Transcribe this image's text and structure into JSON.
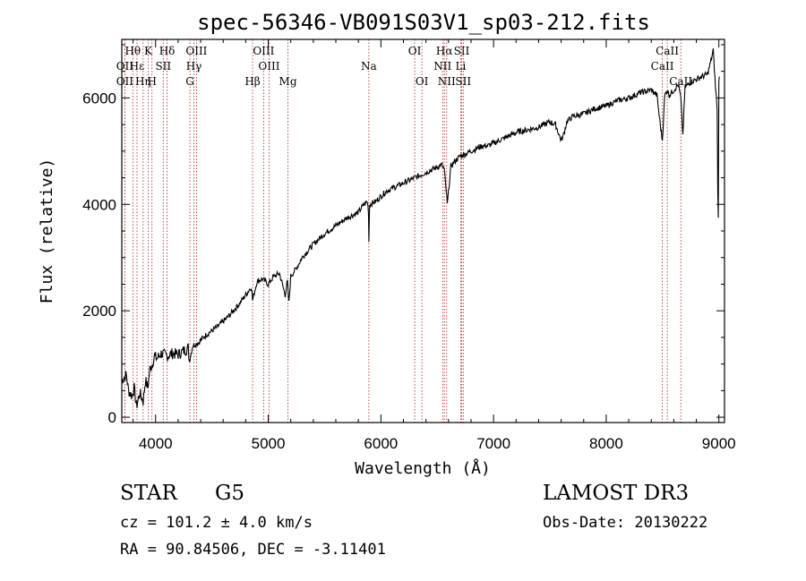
{
  "chart_data": {
    "type": "line",
    "title": "spec-56346-VB091S03V1_sp03-212.fits",
    "xlabel": "Wavelength (Å)",
    "ylabel": "Flux (relative)",
    "xlim": [
      3700,
      9050
    ],
    "ylim": [
      -100,
      7100
    ],
    "x_ticks": [
      4000,
      5000,
      6000,
      7000,
      8000,
      9000
    ],
    "y_ticks": [
      0,
      2000,
      4000,
      6000
    ],
    "x_tick_labels": [
      "4000",
      "5000",
      "6000",
      "7000",
      "8000",
      "9000"
    ],
    "y_tick_labels": [
      "0",
      "2000",
      "4000",
      "6000"
    ],
    "series": [
      {
        "name": "flux",
        "x": [
          3700,
          3740,
          3760,
          3790,
          3810,
          3830,
          3860,
          3890,
          3910,
          3930,
          3950,
          3970,
          3990,
          4010,
          4050,
          4100,
          4150,
          4200,
          4250,
          4290,
          4300,
          4330,
          4380,
          4450,
          4550,
          4650,
          4750,
          4850,
          4861,
          4900,
          4950,
          5000,
          5050,
          5100,
          5150,
          5170,
          5183,
          5200,
          5250,
          5300,
          5400,
          5500,
          5600,
          5700,
          5800,
          5850,
          5880,
          5890,
          5893,
          5900,
          5950,
          6000,
          6050,
          6100,
          6150,
          6200,
          6250,
          6300,
          6350,
          6400,
          6450,
          6500,
          6540,
          6563,
          6590,
          6620,
          6650,
          6700,
          6750,
          6800,
          6850,
          6900,
          6950,
          7000,
          7050,
          7100,
          7150,
          7200,
          7300,
          7400,
          7500,
          7550,
          7600,
          7620,
          7650,
          7700,
          7800,
          7900,
          8000,
          8100,
          8200,
          8300,
          8400,
          8450,
          8480,
          8498,
          8520,
          8542,
          8560,
          8600,
          8640,
          8662,
          8680,
          8700,
          8750,
          8800,
          8850,
          8900,
          8930,
          8950,
          8970,
          8985,
          8990,
          8995,
          9000,
          9005
        ],
        "y": [
          700,
          800,
          500,
          400,
          550,
          200,
          450,
          300,
          700,
          550,
          900,
          1000,
          1150,
          1100,
          1200,
          1150,
          1200,
          1180,
          1250,
          1300,
          1050,
          1350,
          1400,
          1550,
          1700,
          1900,
          2150,
          2450,
          2200,
          2550,
          2600,
          2500,
          2650,
          2700,
          2300,
          2550,
          2150,
          2650,
          2800,
          3000,
          3250,
          3450,
          3600,
          3750,
          3850,
          4000,
          4050,
          3850,
          3300,
          4000,
          4050,
          4150,
          4250,
          4300,
          4350,
          4400,
          4450,
          4500,
          4550,
          4600,
          4650,
          4700,
          4750,
          4650,
          4000,
          4700,
          4800,
          4900,
          4950,
          5000,
          5050,
          5100,
          5100,
          5150,
          5200,
          5250,
          5300,
          5350,
          5400,
          5450,
          5550,
          5500,
          5200,
          5300,
          5550,
          5650,
          5700,
          5800,
          5850,
          5950,
          6000,
          6100,
          6150,
          6050,
          5500,
          5200,
          6050,
          6150,
          6050,
          6150,
          6250,
          6000,
          5300,
          6200,
          6300,
          6350,
          6400,
          6450,
          6700,
          6900,
          6200,
          5800,
          4200,
          3800,
          6300,
          6400
        ],
        "color": "#000000"
      }
    ],
    "lines": [
      {
        "label": "Hθ",
        "wavelength": 3798,
        "row": 0
      },
      {
        "label": "OII",
        "wavelength": 3727,
        "row": 1
      },
      {
        "label": "OII",
        "wavelength": 3727,
        "row": 2
      },
      {
        "label": "Hε",
        "wavelength": 3835,
        "row": 1
      },
      {
        "label": "Hη",
        "wavelength": 3889,
        "row": 2
      },
      {
        "label": "K",
        "wavelength": 3934,
        "row": 0
      },
      {
        "label": "SII",
        "wavelength": 4068,
        "row": 1
      },
      {
        "label": "H",
        "wavelength": 3968,
        "row": 2
      },
      {
        "label": "Hδ",
        "wavelength": 4102,
        "row": 0
      },
      {
        "label": "OIII",
        "wavelength": 4363,
        "row": 0
      },
      {
        "label": "Hγ",
        "wavelength": 4340,
        "row": 1
      },
      {
        "label": "G",
        "wavelength": 4305,
        "row": 2
      },
      {
        "label": "OIII",
        "wavelength": 4959,
        "row": 0
      },
      {
        "label": "OIII",
        "wavelength": 5007,
        "row": 1
      },
      {
        "label": "Hβ",
        "wavelength": 4861,
        "row": 2
      },
      {
        "label": "Mg",
        "wavelength": 5175,
        "row": 2
      },
      {
        "label": "Na",
        "wavelength": 5893,
        "row": 1
      },
      {
        "label": "OI",
        "wavelength": 6300,
        "row": 0
      },
      {
        "label": "OI",
        "wavelength": 6364,
        "row": 2
      },
      {
        "label": "Hα",
        "wavelength": 6563,
        "row": 0
      },
      {
        "label": "SII",
        "wavelength": 6717,
        "row": 0
      },
      {
        "label": "NII",
        "wavelength": 6548,
        "row": 1
      },
      {
        "label": "Li",
        "wavelength": 6708,
        "row": 1
      },
      {
        "label": "NII",
        "wavelength": 6584,
        "row": 2
      },
      {
        "label": "SII",
        "wavelength": 6731,
        "row": 2
      },
      {
        "label": "CaII",
        "wavelength": 8542,
        "row": 0
      },
      {
        "label": "CaII",
        "wavelength": 8498,
        "row": 1
      },
      {
        "label": "CaII",
        "wavelength": 8662,
        "row": 2
      }
    ],
    "line_color": "#b02020"
  },
  "info": {
    "class": "STAR",
    "subclass": "G5",
    "survey": "LAMOST DR3",
    "cz": "cz = 101.2 ± 4.0 km/s",
    "obs_date": "Obs-Date: 20130222",
    "radec": "RA =  90.84506, DEC =  -3.11401"
  }
}
